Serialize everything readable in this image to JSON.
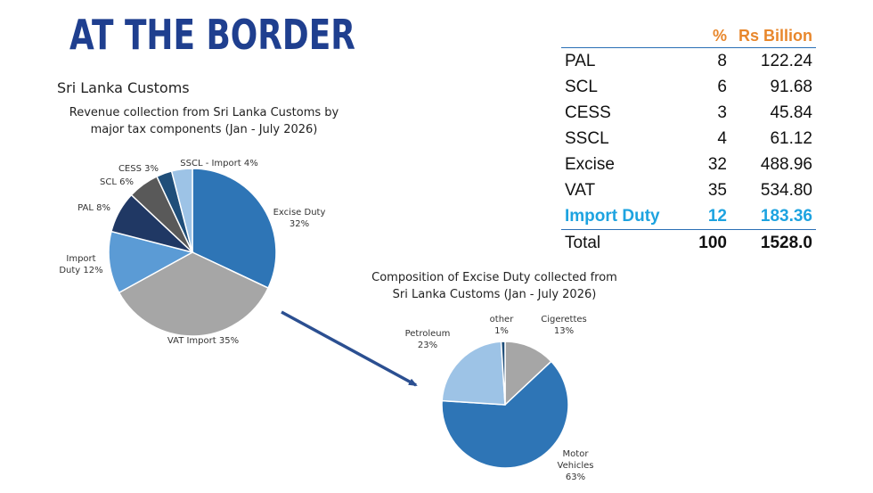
{
  "title": "AT THE BORDER",
  "subtitle": "Sri Lanka Customs",
  "colors": {
    "title": "#1f3f8f",
    "header": "#e8872c",
    "highlight": "#1da3e0",
    "rule": "#2a6fb5",
    "arrow": "#2b4f91"
  },
  "table": {
    "headers": [
      "",
      "%",
      "Rs Billion"
    ],
    "rows": [
      {
        "label": "PAL",
        "pct": "8",
        "value": "122.24"
      },
      {
        "label": "SCL",
        "pct": "6",
        "value": "91.68"
      },
      {
        "label": "CESS",
        "pct": "3",
        "value": "45.84"
      },
      {
        "label": "SSCL",
        "pct": "4",
        "value": "61.12"
      },
      {
        "label": "Excise",
        "pct": "32",
        "value": "488.96"
      },
      {
        "label": "VAT",
        "pct": "35",
        "value": "534.80"
      },
      {
        "label": "Import Duty",
        "pct": "12",
        "value": "183.36"
      },
      {
        "label": "Total",
        "pct": "100",
        "value": "1528.0"
      }
    ]
  },
  "chart_data": [
    {
      "type": "pie",
      "title": "Revenue collection from Sri Lanka Customs by major tax components (Jan - July 2026)",
      "title_lines": [
        "Revenue collection from Sri Lanka Customs by",
        "major tax components (Jan - July 2026)"
      ],
      "slices": [
        {
          "name": "Excise Duty",
          "value": 32,
          "color": "#2e75b6",
          "label_lines": [
            "Excise Duty",
            "32%"
          ]
        },
        {
          "name": "VAT Import",
          "value": 35,
          "color": "#a6a6a6",
          "label_lines": [
            "VAT Import 35%"
          ]
        },
        {
          "name": "Import Duty",
          "value": 12,
          "color": "#5b9bd5",
          "label_lines": [
            "Import",
            "Duty 12%"
          ]
        },
        {
          "name": "PAL",
          "value": 8,
          "color": "#203864",
          "label_lines": [
            "PAL 8%"
          ]
        },
        {
          "name": "SCL",
          "value": 6,
          "color": "#595959",
          "label_lines": [
            "SCL 6%"
          ]
        },
        {
          "name": "CESS",
          "value": 3,
          "color": "#1f4e79",
          "label_lines": [
            "CESS 3%"
          ]
        },
        {
          "name": "SSCL - Import",
          "value": 4,
          "color": "#9dc3e6",
          "label_lines": [
            "SSCL - Import 4%"
          ]
        }
      ]
    },
    {
      "type": "pie",
      "title": "Composition of Excise Duty collected from Sri Lanka Customs (Jan - July 2026)",
      "title_lines": [
        "Composition of Excise Duty collected from",
        "Sri Lanka Customs (Jan - July 2026)"
      ],
      "slices": [
        {
          "name": "Cigerettes",
          "value": 13,
          "color": "#a6a6a6",
          "label_lines": [
            "Cigerettes",
            "13%"
          ]
        },
        {
          "name": "Motor Vehicles",
          "value": 63,
          "color": "#2e75b6",
          "label_lines": [
            "Motor",
            "Vehicles",
            "63%"
          ]
        },
        {
          "name": "Petroleum",
          "value": 23,
          "color": "#9dc3e6",
          "label_lines": [
            "Petroleum",
            "23%"
          ]
        },
        {
          "name": "other",
          "value": 1,
          "color": "#1f4e79",
          "label_lines": [
            "other",
            "1%"
          ]
        }
      ]
    }
  ]
}
